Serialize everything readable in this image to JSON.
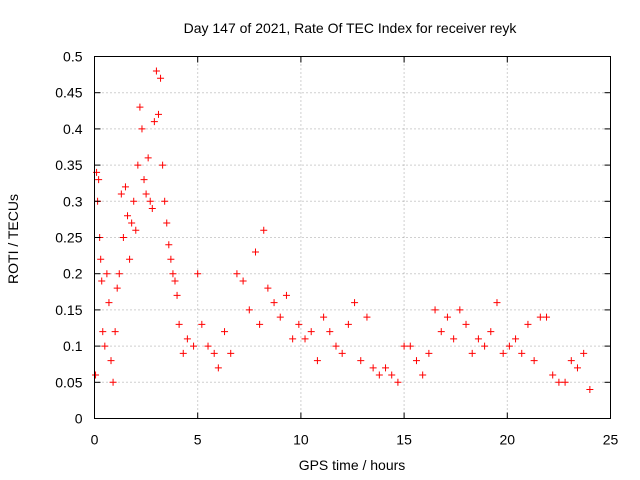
{
  "chart_data": {
    "type": "scatter",
    "title": "Day 147 of 2021, Rate Of TEC Index for receiver reyk",
    "xlabel": "GPS time / hours",
    "ylabel": "ROTI / TECUs",
    "xlim": [
      0,
      25
    ],
    "ylim": [
      0,
      0.5
    ],
    "xticks": [
      0,
      5,
      10,
      15,
      20,
      25
    ],
    "xtick_labels": [
      "0",
      "5",
      "10",
      "15",
      "20",
      "25"
    ],
    "yticks": [
      0,
      0.05,
      0.1,
      0.15,
      0.2,
      0.25,
      0.3,
      0.35,
      0.4,
      0.45,
      0.5
    ],
    "ytick_labels": [
      "0",
      "0.05",
      "0.1",
      "0.15",
      "0.2",
      "0.25",
      "0.3",
      "0.35",
      "0.4",
      "0.45",
      "0.5"
    ],
    "grid": true,
    "marker": "+",
    "series": [
      {
        "name": "ROTI",
        "color": "#ff0000",
        "points": [
          [
            0.05,
            0.06
          ],
          [
            0.1,
            0.34
          ],
          [
            0.15,
            0.3
          ],
          [
            0.2,
            0.33
          ],
          [
            0.25,
            0.25
          ],
          [
            0.3,
            0.22
          ],
          [
            0.35,
            0.19
          ],
          [
            0.4,
            0.12
          ],
          [
            0.5,
            0.1
          ],
          [
            0.6,
            0.2
          ],
          [
            0.7,
            0.16
          ],
          [
            0.8,
            0.08
          ],
          [
            0.9,
            0.05
          ],
          [
            1.0,
            0.12
          ],
          [
            1.1,
            0.18
          ],
          [
            1.2,
            0.2
          ],
          [
            1.3,
            0.31
          ],
          [
            1.4,
            0.25
          ],
          [
            1.5,
            0.32
          ],
          [
            1.6,
            0.28
          ],
          [
            1.7,
            0.22
          ],
          [
            1.8,
            0.27
          ],
          [
            1.9,
            0.3
          ],
          [
            2.0,
            0.26
          ],
          [
            2.1,
            0.35
          ],
          [
            2.2,
            0.43
          ],
          [
            2.3,
            0.4
          ],
          [
            2.4,
            0.33
          ],
          [
            2.5,
            0.31
          ],
          [
            2.6,
            0.36
          ],
          [
            2.7,
            0.3
          ],
          [
            2.8,
            0.29
          ],
          [
            2.9,
            0.41
          ],
          [
            3.0,
            0.48
          ],
          [
            3.1,
            0.42
          ],
          [
            3.2,
            0.47
          ],
          [
            3.3,
            0.35
          ],
          [
            3.4,
            0.3
          ],
          [
            3.5,
            0.27
          ],
          [
            3.6,
            0.24
          ],
          [
            3.7,
            0.22
          ],
          [
            3.8,
            0.2
          ],
          [
            3.9,
            0.19
          ],
          [
            4.0,
            0.17
          ],
          [
            4.1,
            0.13
          ],
          [
            4.3,
            0.09
          ],
          [
            4.5,
            0.11
          ],
          [
            4.8,
            0.1
          ],
          [
            5.0,
            0.2
          ],
          [
            5.2,
            0.13
          ],
          [
            5.5,
            0.1
          ],
          [
            5.8,
            0.09
          ],
          [
            6.0,
            0.07
          ],
          [
            6.3,
            0.12
          ],
          [
            6.6,
            0.09
          ],
          [
            6.9,
            0.2
          ],
          [
            7.2,
            0.19
          ],
          [
            7.5,
            0.15
          ],
          [
            7.8,
            0.23
          ],
          [
            8.0,
            0.13
          ],
          [
            8.2,
            0.26
          ],
          [
            8.4,
            0.18
          ],
          [
            8.7,
            0.16
          ],
          [
            9.0,
            0.14
          ],
          [
            9.3,
            0.17
          ],
          [
            9.6,
            0.11
          ],
          [
            9.9,
            0.13
          ],
          [
            10.2,
            0.11
          ],
          [
            10.5,
            0.12
          ],
          [
            10.8,
            0.08
          ],
          [
            11.1,
            0.14
          ],
          [
            11.4,
            0.12
          ],
          [
            11.7,
            0.1
          ],
          [
            12.0,
            0.09
          ],
          [
            12.3,
            0.13
          ],
          [
            12.6,
            0.16
          ],
          [
            12.9,
            0.08
          ],
          [
            13.2,
            0.14
          ],
          [
            13.5,
            0.07
          ],
          [
            13.8,
            0.06
          ],
          [
            14.1,
            0.07
          ],
          [
            14.4,
            0.06
          ],
          [
            14.7,
            0.05
          ],
          [
            15.0,
            0.1
          ],
          [
            15.3,
            0.1
          ],
          [
            15.6,
            0.08
          ],
          [
            15.9,
            0.06
          ],
          [
            16.2,
            0.09
          ],
          [
            16.5,
            0.15
          ],
          [
            16.8,
            0.12
          ],
          [
            17.1,
            0.14
          ],
          [
            17.4,
            0.11
          ],
          [
            17.7,
            0.15
          ],
          [
            18.0,
            0.13
          ],
          [
            18.3,
            0.09
          ],
          [
            18.6,
            0.11
          ],
          [
            18.9,
            0.1
          ],
          [
            19.2,
            0.12
          ],
          [
            19.5,
            0.16
          ],
          [
            19.8,
            0.09
          ],
          [
            20.1,
            0.1
          ],
          [
            20.4,
            0.11
          ],
          [
            20.7,
            0.09
          ],
          [
            21.0,
            0.13
          ],
          [
            21.3,
            0.08
          ],
          [
            21.6,
            0.14
          ],
          [
            21.9,
            0.14
          ],
          [
            22.2,
            0.06
          ],
          [
            22.5,
            0.05
          ],
          [
            22.8,
            0.05
          ],
          [
            23.1,
            0.08
          ],
          [
            23.4,
            0.07
          ],
          [
            23.7,
            0.09
          ],
          [
            24.0,
            0.04
          ]
        ]
      }
    ]
  }
}
